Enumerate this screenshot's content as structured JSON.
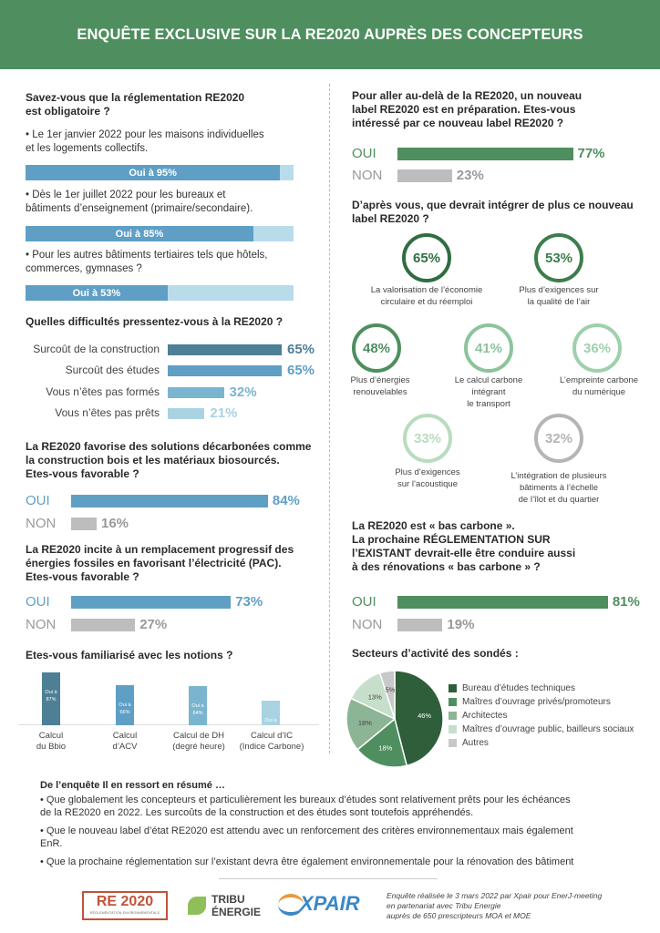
{
  "title": "ENQUÊTE EXCLUSIVE SUR LA RE2020 AUPRÈS DES CONCEPTEURS",
  "left": {
    "q1": {
      "title_l1": "Savez-vous que la réglementation RE2020",
      "title_l2": "est obligatoire ?",
      "items": [
        {
          "l1": "• Le 1er janvier 2022 pour les maisons individuelles",
          "l2": "et les logements collectifs.",
          "bar_label": "Oui à 95%",
          "value": 95
        },
        {
          "l1": "• Dès le 1er juillet 2022 pour les bureaux et",
          "l2": "bâtiments d’enseignement (primaire/secondaire).",
          "bar_label": "Oui à 85%",
          "value": 85
        },
        {
          "l1": "• Pour les autres bâtiments tertiaires tels que hôtels,",
          "l2": "commerces, gymnases ?",
          "bar_label": "Oui à 53%",
          "value": 53
        }
      ]
    },
    "q2": {
      "title": "Quelles difficultés pressentez-vous à la RE2020 ?",
      "items": [
        {
          "label": "Surcoût de la construction",
          "value": 65,
          "pct": "65%",
          "color": "#4d7f95"
        },
        {
          "label": "Surcoût des études",
          "value": 65,
          "pct": "65%",
          "color": "#5f9fc5"
        },
        {
          "label": "Vous n’êtes pas formés",
          "value": 32,
          "pct": "32%",
          "color": "#7ab5cf"
        },
        {
          "label": "Vous n’êtes pas prêts",
          "value": 21,
          "pct": "21%",
          "color": "#a9d3e2"
        }
      ]
    },
    "q3": {
      "title_l1": "La RE2020 favorise des solutions décarbonées comme",
      "title_l2": "la construction bois et les matériaux biosourcés.",
      "title_l3": "Etes-vous favorable ?",
      "yes_label": "OUI",
      "yes_value": 84,
      "yes_pct": "84%",
      "no_label": "NON",
      "no_value": 16,
      "no_pct": "16%"
    },
    "q4": {
      "title_l1": "La RE2020 incite à un remplacement progressif des",
      "title_l2": "énergies fossiles en favorisant l’électricité (PAC).",
      "title_l3": "Etes-vous favorable ?",
      "yes_label": "OUI",
      "yes_value": 73,
      "yes_pct": "73%",
      "no_label": "NON",
      "no_value": 27,
      "no_pct": "27%"
    },
    "q5": {
      "title": "Etes-vous familiarisé avec les notions ?",
      "bars": [
        {
          "label_l1": "Oui à",
          "label_l2": "87%",
          "value": 87,
          "cap_l1": "Calcul",
          "cap_l2": "du Bbio",
          "color": "#4d7f95"
        },
        {
          "label_l1": "Oui à",
          "label_l2": "66%",
          "value": 66,
          "cap_l1": "Calcul",
          "cap_l2": "d’ACV",
          "color": "#5f9fc5"
        },
        {
          "label_l1": "Oui à",
          "label_l2": "64%",
          "value": 64,
          "cap_l1": "Calcul de DH",
          "cap_l2": "(degré heure)",
          "color": "#7ab5cf"
        },
        {
          "label_l1": "Oui à",
          "label_l2": "40%",
          "value": 40,
          "cap_l1": "Calcul d’IC",
          "cap_l2": "(Indice Carbone)",
          "color": "#a9d3e2"
        }
      ]
    }
  },
  "right": {
    "q6": {
      "title_l1": "Pour aller au-delà de la RE2020, un nouveau",
      "title_l2": "label RE2020 est en préparation. Etes-vous",
      "title_l3": "intéressé par ce nouveau label RE2020 ?",
      "yes_label": "OUI",
      "yes_value": 77,
      "yes_pct": "77%",
      "no_label": "NON",
      "no_value": 23,
      "no_pct": "23%"
    },
    "q7": {
      "title_l1": "D’après vous, que devrait intégrer de plus ce nouveau",
      "title_l2": "label RE2020 ?",
      "items": [
        {
          "pct": "65%",
          "cap": [
            "La valorisation de l’économie",
            "circulaire et du réemploi"
          ],
          "color": "#2f6e41"
        },
        {
          "pct": "53%",
          "cap": [
            "Plus d’exigences sur",
            "la qualité de l’air"
          ],
          "color": "#3d7d4c"
        },
        {
          "pct": "48%",
          "cap": [
            "Plus d’énergies",
            "renouvelables"
          ],
          "color": "#4f8f5f"
        },
        {
          "pct": "41%",
          "cap": [
            "Le calcul carbone",
            "intégrant",
            "le transport"
          ],
          "color": "#8cc49c"
        },
        {
          "pct": "36%",
          "cap": [
            "L’empreinte carbone",
            "du numérique"
          ],
          "color": "#9fd0ac"
        },
        {
          "pct": "33%",
          "cap": [
            "Plus d’exigences",
            "sur l’acoustique"
          ],
          "color": "#b8dcc0"
        },
        {
          "pct": "32%",
          "cap": [
            "L’intégration de plusieurs",
            "bâtiments à l’échelle",
            "de l’îlot et du quartier"
          ],
          "color": "#b5b5b5"
        }
      ]
    },
    "q8": {
      "title_l1": "La RE2020 est « bas carbone ».",
      "title_l2": "La prochaine RÉGLEMENTATION SUR",
      "title_l3": "l’EXISTANT devrait-elle être conduire aussi",
      "title_l4": "à des rénovations « bas carbone » ?",
      "yes_label": "OUI",
      "yes_value": 81,
      "yes_pct": "81%",
      "no_label": "NON",
      "no_value": 19,
      "no_pct": "19%"
    },
    "q9": {
      "title": "Secteurs d’activité des sondés :",
      "chart_data": {
        "type": "pie",
        "categories": [
          "Bureau d’études techniques",
          "Maîtres d’ouvrage privés/promoteurs",
          "Architectes",
          "Maîtres d’ouvrage public, bailleurs sociaux",
          "Autres"
        ],
        "values": [
          46,
          18,
          18,
          13,
          5
        ],
        "labels": [
          "46%",
          "18%",
          "18%",
          "13%",
          "5%"
        ],
        "colors": [
          "#2f5e3a",
          "#4f8f5f",
          "#8cb596",
          "#c6dfcb",
          "#c8c8c8"
        ],
        "legend": "right"
      }
    }
  },
  "summary": {
    "title": "De l’enquête Il en ressort en résumé …",
    "b1_l1": "• Que globalement les concepteurs et particulièrement les bureaux d’études sont relativement prêts pour les échéances",
    "b1_l2": "de la RE2020 en 2022. Les surcoûts de la construction et des études sont toutefois appréhendés.",
    "b2_l1": "• Que le nouveau label d’état RE2020 est attendu avec un renforcement des critères environnementaux mais également",
    "b2_l2": "EnR.",
    "b3": "•  Que la prochaine réglementation sur l’existant devra être également environnementale pour la rénovation des bâtiment"
  },
  "footer": {
    "logo1": "RE 2020",
    "logo1_sub": "RÉGLEMENTATION ENVIRONNEMENTALE",
    "logo2_l1": "TRIBU",
    "logo2_l2": "ÉNERGIE",
    "logo3": "XPAIR",
    "note_l1": "Enquête réalisée le 3 mars 2022 par Xpair pour EnerJ-meeting",
    "note_l2": "en partenariat avec Tribu Energie",
    "note_l3": "auprès de 650 prescripteurs MOA et MOE"
  }
}
